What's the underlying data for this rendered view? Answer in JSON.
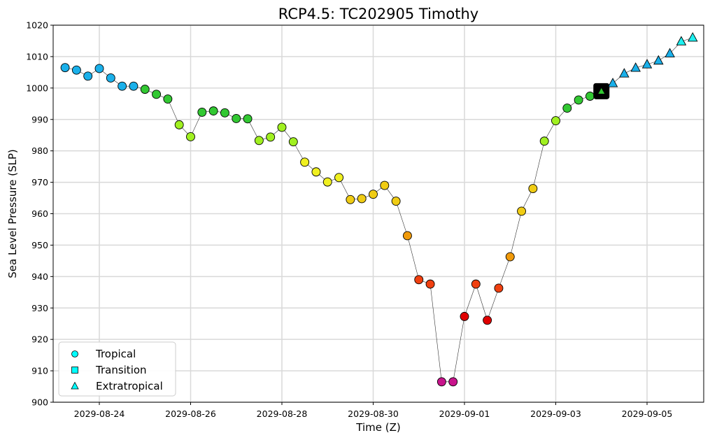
{
  "chart_data": {
    "type": "scatter",
    "title": "RCP4.5: TC202905 Timothy",
    "xlabel": "Time (Z)",
    "ylabel": "Sea Level Pressure (SLP)",
    "ylim": [
      900,
      1020
    ],
    "yticks": [
      900,
      910,
      920,
      930,
      940,
      950,
      960,
      970,
      980,
      990,
      1000,
      1010,
      1020
    ],
    "xticks": [
      "2029-08-24",
      "2029-08-26",
      "2029-08-28",
      "2029-08-30",
      "2029-09-01",
      "2029-09-03",
      "2029-09-05"
    ],
    "grid": true,
    "legend_position": "lower-left",
    "legend": [
      {
        "label": "Tropical",
        "marker": "circle"
      },
      {
        "label": "Transition",
        "marker": "square"
      },
      {
        "label": "Extratropical",
        "marker": "triangle"
      }
    ],
    "points": [
      {
        "t": "2029-08-23 06:00",
        "slp": 1006.5,
        "phase": "tropical",
        "color": "#1ab0ea"
      },
      {
        "t": "2029-08-23 12:00",
        "slp": 1005.7,
        "phase": "tropical",
        "color": "#1ab0ea"
      },
      {
        "t": "2029-08-23 18:00",
        "slp": 1003.8,
        "phase": "tropical",
        "color": "#1ab0ea"
      },
      {
        "t": "2029-08-24 00:00",
        "slp": 1006.2,
        "phase": "tropical",
        "color": "#1ab0ea"
      },
      {
        "t": "2029-08-24 06:00",
        "slp": 1003.2,
        "phase": "tropical",
        "color": "#1ab0ea"
      },
      {
        "t": "2029-08-24 12:00",
        "slp": 1000.6,
        "phase": "tropical",
        "color": "#1ab0ea"
      },
      {
        "t": "2029-08-24 18:00",
        "slp": 1000.6,
        "phase": "tropical",
        "color": "#1ab0ea"
      },
      {
        "t": "2029-08-25 00:00",
        "slp": 999.6,
        "phase": "tropical",
        "color": "#32c832"
      },
      {
        "t": "2029-08-25 06:00",
        "slp": 998.0,
        "phase": "tropical",
        "color": "#32c832"
      },
      {
        "t": "2029-08-25 12:00",
        "slp": 996.5,
        "phase": "tropical",
        "color": "#32c832"
      },
      {
        "t": "2029-08-25 18:00",
        "slp": 988.3,
        "phase": "tropical",
        "color": "#a0f020"
      },
      {
        "t": "2029-08-26 00:00",
        "slp": 984.5,
        "phase": "tropical",
        "color": "#a0f020"
      },
      {
        "t": "2029-08-26 06:00",
        "slp": 992.3,
        "phase": "tropical",
        "color": "#32c832"
      },
      {
        "t": "2029-08-26 12:00",
        "slp": 992.7,
        "phase": "tropical",
        "color": "#32c832"
      },
      {
        "t": "2029-08-26 18:00",
        "slp": 992.1,
        "phase": "tropical",
        "color": "#32c832"
      },
      {
        "t": "2029-08-27 00:00",
        "slp": 990.3,
        "phase": "tropical",
        "color": "#32c832"
      },
      {
        "t": "2029-08-27 06:00",
        "slp": 990.2,
        "phase": "tropical",
        "color": "#32c832"
      },
      {
        "t": "2029-08-27 12:00",
        "slp": 983.3,
        "phase": "tropical",
        "color": "#a0f020"
      },
      {
        "t": "2029-08-27 18:00",
        "slp": 984.4,
        "phase": "tropical",
        "color": "#a0f020"
      },
      {
        "t": "2029-08-28 00:00",
        "slp": 987.5,
        "phase": "tropical",
        "color": "#a0f020"
      },
      {
        "t": "2029-08-28 06:00",
        "slp": 982.9,
        "phase": "tropical",
        "color": "#a0f020"
      },
      {
        "t": "2029-08-28 12:00",
        "slp": 976.4,
        "phase": "tropical",
        "color": "#f0f020"
      },
      {
        "t": "2029-08-28 18:00",
        "slp": 973.3,
        "phase": "tropical",
        "color": "#f0f020"
      },
      {
        "t": "2029-08-29 00:00",
        "slp": 970.1,
        "phase": "tropical",
        "color": "#f0f020"
      },
      {
        "t": "2029-08-29 06:00",
        "slp": 971.5,
        "phase": "tropical",
        "color": "#f0f020"
      },
      {
        "t": "2029-08-29 12:00",
        "slp": 964.5,
        "phase": "tropical",
        "color": "#f0cc14"
      },
      {
        "t": "2029-08-29 18:00",
        "slp": 964.8,
        "phase": "tropical",
        "color": "#f0cc14"
      },
      {
        "t": "2029-08-30 00:00",
        "slp": 966.2,
        "phase": "tropical",
        "color": "#f0cc14"
      },
      {
        "t": "2029-08-30 06:00",
        "slp": 969.0,
        "phase": "tropical",
        "color": "#f0cc14"
      },
      {
        "t": "2029-08-30 12:00",
        "slp": 964.0,
        "phase": "tropical",
        "color": "#f0cc14"
      },
      {
        "t": "2029-08-30 18:00",
        "slp": 953.0,
        "phase": "tropical",
        "color": "#f09a0a"
      },
      {
        "t": "2029-08-31 00:00",
        "slp": 939.0,
        "phase": "tropical",
        "color": "#f04010"
      },
      {
        "t": "2029-08-31 06:00",
        "slp": 937.6,
        "phase": "tropical",
        "color": "#f04010"
      },
      {
        "t": "2029-08-31 12:00",
        "slp": 906.5,
        "phase": "tropical",
        "color": "#c8148c"
      },
      {
        "t": "2029-08-31 18:00",
        "slp": 906.5,
        "phase": "tropical",
        "color": "#c8148c"
      },
      {
        "t": "2029-09-01 00:00",
        "slp": 927.3,
        "phase": "tropical",
        "color": "#e00000"
      },
      {
        "t": "2029-09-01 06:00",
        "slp": 937.6,
        "phase": "tropical",
        "color": "#f04010"
      },
      {
        "t": "2029-09-01 12:00",
        "slp": 926.1,
        "phase": "tropical",
        "color": "#e00000"
      },
      {
        "t": "2029-09-01 18:00",
        "slp": 936.3,
        "phase": "tropical",
        "color": "#f04010"
      },
      {
        "t": "2029-09-02 00:00",
        "slp": 946.3,
        "phase": "tropical",
        "color": "#f09a0a"
      },
      {
        "t": "2029-09-02 06:00",
        "slp": 960.8,
        "phase": "tropical",
        "color": "#f0cc14"
      },
      {
        "t": "2029-09-02 12:00",
        "slp": 968.0,
        "phase": "tropical",
        "color": "#f0cc14"
      },
      {
        "t": "2029-09-02 18:00",
        "slp": 983.1,
        "phase": "tropical",
        "color": "#a0f020"
      },
      {
        "t": "2029-09-03 00:00",
        "slp": 989.6,
        "phase": "tropical",
        "color": "#a0f020"
      },
      {
        "t": "2029-09-03 06:00",
        "slp": 993.6,
        "phase": "tropical",
        "color": "#32c832"
      },
      {
        "t": "2029-09-03 12:00",
        "slp": 996.2,
        "phase": "tropical",
        "color": "#32c832"
      },
      {
        "t": "2029-09-03 18:00",
        "slp": 997.4,
        "phase": "tropical",
        "color": "#32c832"
      },
      {
        "t": "2029-09-04 00:00",
        "slp": 999.0,
        "phase": "transition",
        "color": "#32c832"
      },
      {
        "t": "2029-09-04 06:00",
        "slp": 1001.5,
        "phase": "extratropical",
        "color": "#1ab0ea"
      },
      {
        "t": "2029-09-04 12:00",
        "slp": 1004.6,
        "phase": "extratropical",
        "color": "#1ab0ea"
      },
      {
        "t": "2029-09-04 18:00",
        "slp": 1006.4,
        "phase": "extratropical",
        "color": "#1ab0ea"
      },
      {
        "t": "2029-09-05 00:00",
        "slp": 1007.5,
        "phase": "extratropical",
        "color": "#1ab0ea"
      },
      {
        "t": "2029-09-05 06:00",
        "slp": 1008.7,
        "phase": "extratropical",
        "color": "#1ab0ea"
      },
      {
        "t": "2029-09-05 12:00",
        "slp": 1011.0,
        "phase": "extratropical",
        "color": "#1ab0ea"
      },
      {
        "t": "2029-09-05 18:00",
        "slp": 1014.8,
        "phase": "extratropical",
        "color": "#1ef0f0"
      },
      {
        "t": "2029-09-06 00:00",
        "slp": 1016.0,
        "phase": "extratropical",
        "color": "#1ef0f0"
      }
    ],
    "legend_marker_color": "#00ffff"
  }
}
